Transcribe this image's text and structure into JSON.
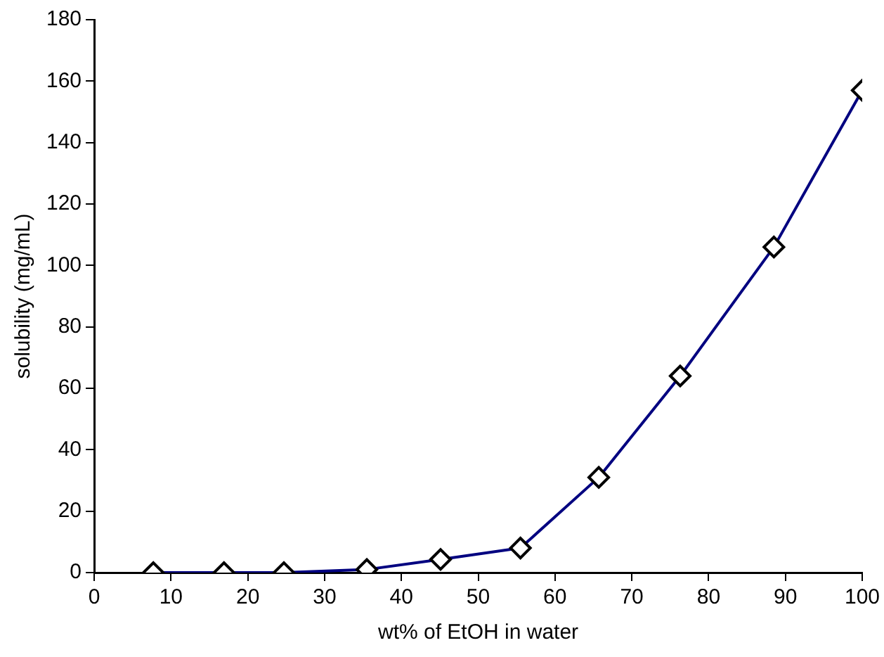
{
  "chart_data": {
    "type": "line",
    "xlabel": "wt% of EtOH in water",
    "ylabel": "solubility (mg/mL)",
    "x": [
      7.7,
      16.9,
      24.7,
      35.5,
      45.1,
      55.5,
      65.7,
      76.3,
      88.5,
      100
    ],
    "series": [
      {
        "color": "#000080",
        "values": [
          0,
          0,
          0,
          1,
          4.3,
          8,
          31,
          64,
          106,
          157
        ]
      }
    ],
    "xlim": [
      0,
      100
    ],
    "xticks": [
      0,
      10,
      20,
      30,
      40,
      50,
      60,
      70,
      80,
      90,
      100
    ],
    "ylim": [
      0,
      180
    ],
    "yticks": [
      0,
      20,
      40,
      60,
      80,
      100,
      120,
      140,
      160,
      180
    ],
    "grid": false,
    "legend": false,
    "marker": "diamond",
    "line_style": "solid"
  }
}
